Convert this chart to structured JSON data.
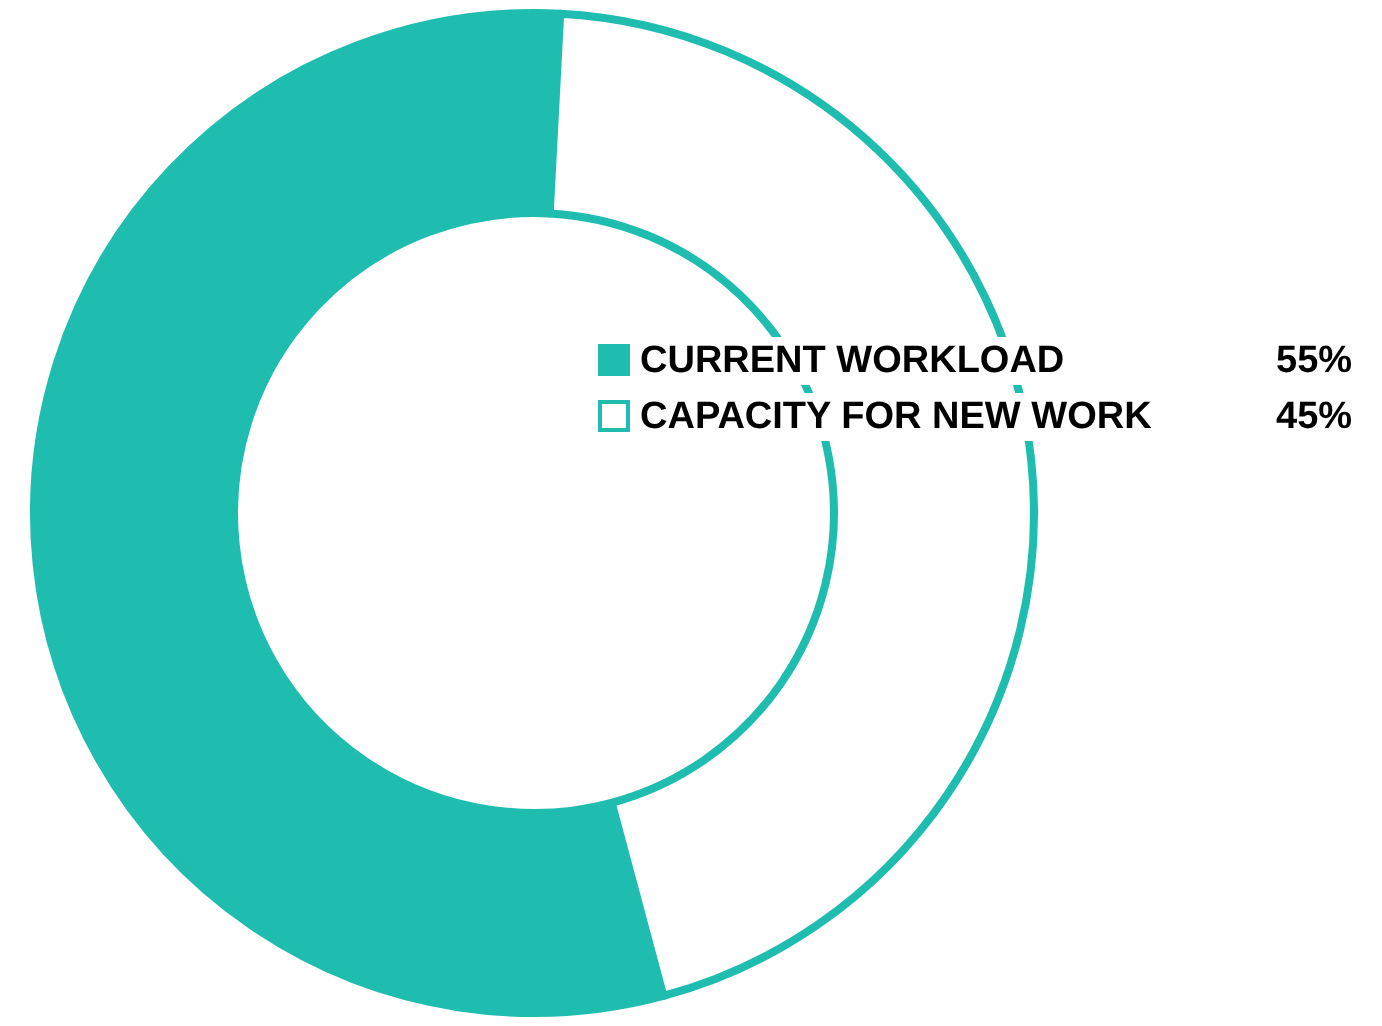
{
  "chart_data": {
    "type": "donut",
    "categories": [
      "CURRENT WORKLOAD",
      "CAPACITY FOR NEW WORK"
    ],
    "values": [
      55,
      45
    ],
    "colors": [
      "#1fbcb0",
      "#ffffff"
    ],
    "value_labels": [
      "55%",
      "45%"
    ],
    "legend": "right"
  }
}
